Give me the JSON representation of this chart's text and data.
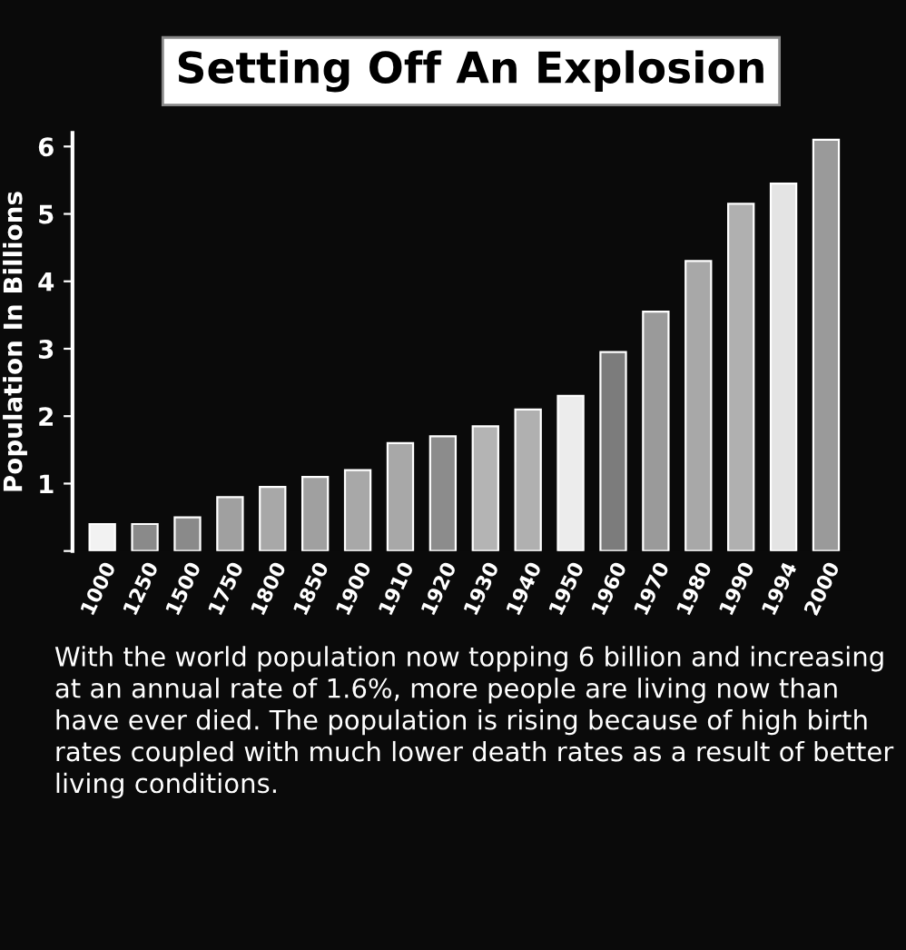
{
  "chart_data": {
    "type": "bar",
    "title": "Setting Off An Explosion",
    "ylabel": "Population In Billions",
    "categories": [
      "1000",
      "1250",
      "1500",
      "1750",
      "1800",
      "1850",
      "1900",
      "1910",
      "1920",
      "1930",
      "1940",
      "1950",
      "1960",
      "1970",
      "1980",
      "1990",
      "1994",
      "2000"
    ],
    "values": [
      0.4,
      0.4,
      0.5,
      0.8,
      0.95,
      1.1,
      1.2,
      1.6,
      1.7,
      1.85,
      2.1,
      2.3,
      2.95,
      3.55,
      4.3,
      5.15,
      5.45,
      6.1
    ],
    "colors": [
      "#f2f2f2",
      "#8a8a8a",
      "#8a8a8a",
      "#a0a0a0",
      "#a8a8a8",
      "#a0a0a0",
      "#a8a8a8",
      "#a8a8a8",
      "#8c8c8c",
      "#b4b4b4",
      "#b0b0b0",
      "#ececec",
      "#7c7c7c",
      "#9a9a9a",
      "#a8a8a8",
      "#b0b0b0",
      "#e4e4e4",
      "#9a9a9a"
    ],
    "ylim": [
      0,
      6.2
    ],
    "yticks": [
      {
        "value": 0,
        "label": null
      },
      1,
      2,
      3,
      4,
      5,
      6
    ],
    "grid": false,
    "annotations": [
      "With the world population now topping 6 billion and increasing at an annual rate of 1.6%, more people are living now than have ever died. The population is rising because of high birth rates coupled with much lower death rates as a result of better living conditions."
    ]
  }
}
